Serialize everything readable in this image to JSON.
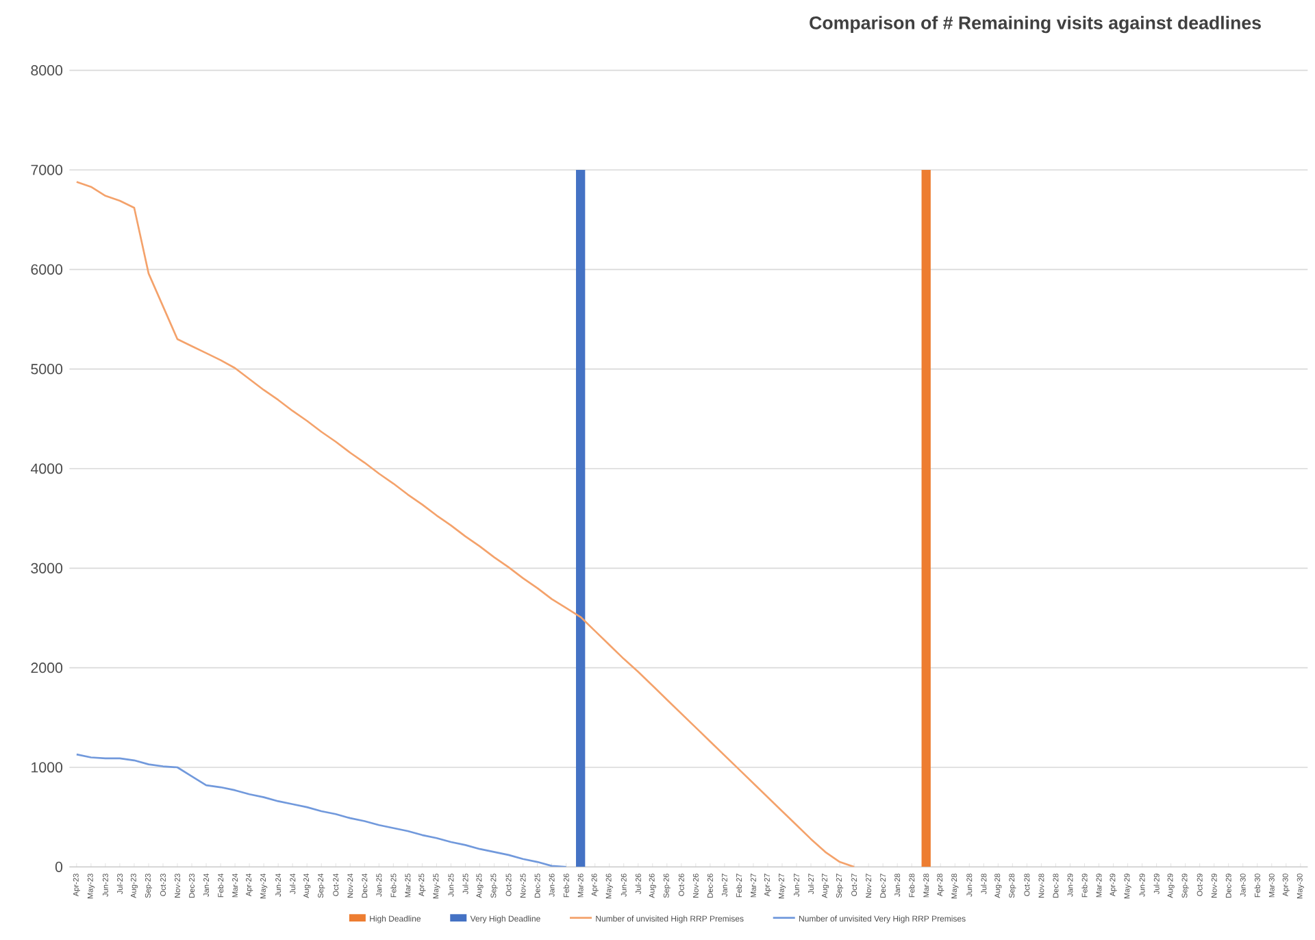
{
  "chart_data": {
    "type": "line",
    "title": "Comparison of # Remaining visits against deadlines",
    "categories": [
      "Apr-23",
      "May-23",
      "Jun-23",
      "Jul-23",
      "Aug-23",
      "Sep-23",
      "Oct-23",
      "Nov-23",
      "Dec-23",
      "Jan-24",
      "Feb-24",
      "Mar-24",
      "Apr-24",
      "May-24",
      "Jun-24",
      "Jul-24",
      "Aug-24",
      "Sep-24",
      "Oct-24",
      "Nov-24",
      "Dec-24",
      "Jan-25",
      "Feb-25",
      "Mar-25",
      "Apr-25",
      "May-25",
      "Jun-25",
      "Jul-25",
      "Aug-25",
      "Sep-25",
      "Oct-25",
      "Nov-25",
      "Dec-25",
      "Jan-26",
      "Feb-26",
      "Mar-26",
      "Apr-26",
      "May-26",
      "Jun-26",
      "Jul-26",
      "Aug-26",
      "Sep-26",
      "Oct-26",
      "Nov-26",
      "Dec-26",
      "Jan-27",
      "Feb-27",
      "Mar-27",
      "Apr-27",
      "May-27",
      "Jun-27",
      "Jul-27",
      "Aug-27",
      "Sep-27",
      "Oct-27",
      "Nov-27",
      "Dec-27",
      "Jan-28",
      "Feb-28",
      "Mar-28",
      "Apr-28",
      "May-28",
      "Jun-28",
      "Jul-28",
      "Aug-28",
      "Sep-28",
      "Oct-28",
      "Nov-28",
      "Dec-28",
      "Jan-29",
      "Feb-29",
      "Mar-29",
      "Apr-29",
      "May-29",
      "Jun-29",
      "Jul-29",
      "Aug-29",
      "Sep-29",
      "Oct-29",
      "Nov-29",
      "Dec-29",
      "Jan-30",
      "Feb-30",
      "Mar-30",
      "Apr-30",
      "May-30"
    ],
    "series": [
      {
        "name": "High Deadline",
        "type": "bar",
        "color": "#ed7d31",
        "values": [
          null,
          null,
          null,
          null,
          null,
          null,
          null,
          null,
          null,
          null,
          null,
          null,
          null,
          null,
          null,
          null,
          null,
          null,
          null,
          null,
          null,
          null,
          null,
          null,
          null,
          null,
          null,
          null,
          null,
          null,
          null,
          null,
          null,
          null,
          null,
          null,
          null,
          null,
          null,
          null,
          null,
          null,
          null,
          null,
          null,
          null,
          null,
          null,
          null,
          null,
          null,
          null,
          null,
          null,
          null,
          null,
          null,
          null,
          null,
          7000,
          null,
          null,
          null,
          null,
          null,
          null,
          null,
          null,
          null,
          null,
          null,
          null,
          null,
          null,
          null,
          null,
          null,
          null,
          null,
          null,
          null,
          null,
          null,
          null,
          null,
          null
        ]
      },
      {
        "name": "Very High Deadline",
        "type": "bar",
        "color": "#4472c4",
        "values": [
          null,
          null,
          null,
          null,
          null,
          null,
          null,
          null,
          null,
          null,
          null,
          null,
          null,
          null,
          null,
          null,
          null,
          null,
          null,
          null,
          null,
          null,
          null,
          null,
          null,
          null,
          null,
          null,
          null,
          null,
          null,
          null,
          null,
          null,
          null,
          7000,
          null,
          null,
          null,
          null,
          null,
          null,
          null,
          null,
          null,
          null,
          null,
          null,
          null,
          null,
          null,
          null,
          null,
          null,
          null,
          null,
          null,
          null,
          null,
          null,
          null,
          null,
          null,
          null,
          null,
          null,
          null,
          null,
          null,
          null,
          null,
          null,
          null,
          null,
          null,
          null,
          null,
          null,
          null,
          null,
          null,
          null,
          null,
          null,
          null,
          null
        ]
      },
      {
        "name": "Number of unvisited High RRP Premises",
        "color": "#f4a26b",
        "values": [
          6880,
          6830,
          6740,
          6690,
          6620,
          5960,
          5630,
          5300,
          5230,
          5160,
          5090,
          5010,
          4900,
          4790,
          4690,
          4580,
          4480,
          4370,
          4270,
          4160,
          4060,
          3950,
          3850,
          3740,
          3640,
          3530,
          3430,
          3320,
          3220,
          3110,
          3010,
          2900,
          2800,
          2690,
          2600,
          2510,
          2370,
          2230,
          2090,
          1960,
          1820,
          1680,
          1540,
          1400,
          1260,
          1120,
          980,
          840,
          700,
          560,
          420,
          280,
          150,
          50,
          0,
          null,
          null,
          null,
          null,
          null,
          null,
          null,
          null,
          null,
          null,
          null,
          null,
          null,
          null,
          null,
          null,
          null,
          null,
          null,
          null,
          null,
          null,
          null,
          null,
          null,
          null,
          null,
          null,
          null,
          null,
          null
        ]
      },
      {
        "name": "Number of unvisited Very High RRP Premises",
        "color": "#7199dc",
        "values": [
          1130,
          1100,
          1090,
          1090,
          1070,
          1030,
          1010,
          1000,
          910,
          820,
          800,
          770,
          730,
          700,
          660,
          630,
          600,
          560,
          530,
          490,
          460,
          420,
          390,
          360,
          320,
          290,
          250,
          220,
          180,
          150,
          120,
          80,
          50,
          10,
          0,
          null,
          null,
          null,
          null,
          null,
          null,
          null,
          null,
          null,
          null,
          null,
          null,
          null,
          null,
          null,
          null,
          null,
          null,
          null,
          null,
          null,
          null,
          null,
          null,
          null,
          null,
          null,
          null,
          null,
          null,
          null,
          null,
          null,
          null,
          null,
          null,
          null,
          null,
          null,
          null,
          null,
          null,
          null,
          null,
          null,
          null,
          null,
          null,
          null,
          null,
          null
        ]
      }
    ],
    "ylim": [
      0,
      8000
    ],
    "yticks": [
      0,
      1000,
      2000,
      3000,
      4000,
      5000,
      6000,
      7000,
      8000
    ],
    "grid": "y",
    "legend": "bottom"
  }
}
